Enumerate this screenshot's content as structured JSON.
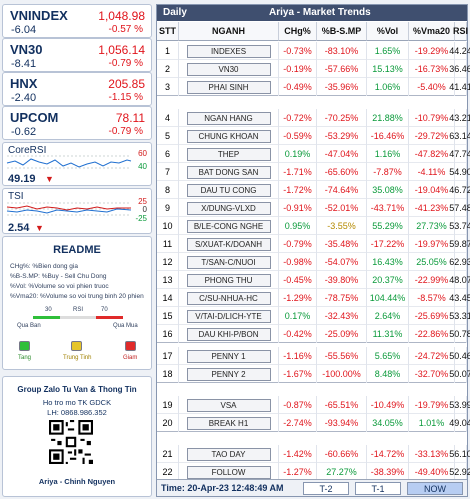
{
  "indices": [
    {
      "name": "VNINDEX",
      "value": "1,048.98",
      "change": "-6.04",
      "pct": "-0.57 %"
    },
    {
      "name": "VN30",
      "value": "1,056.14",
      "change": "-8.41",
      "pct": "-0.79 %"
    },
    {
      "name": "HNX",
      "value": "205.85",
      "change": "-2.40",
      "pct": "-1.15 %"
    },
    {
      "name": "UPCOM",
      "value": "78.11",
      "change": "-0.62",
      "pct": "-0.79 %"
    }
  ],
  "core_rsi": {
    "title": "CoreRSI",
    "value": "49.19",
    "ticks": [
      "60",
      "40"
    ],
    "line_color": "#1f6fd0"
  },
  "tsi": {
    "title": "TSI",
    "value": "2.54",
    "ticks": [
      "25",
      "0",
      "-25"
    ],
    "colors": [
      "#d21b1b",
      "#1f6fd0"
    ]
  },
  "readme": {
    "title": "README",
    "lines": [
      "CHg%: %Bien dong gia",
      "%B-S.MP: %Buy - Sell Chu Dong",
      "%Vol: %Volume so voi phien truoc",
      "%Vma20: %Volume so voi trung binh 20 phien"
    ],
    "scale": {
      "left": "30",
      "mid": "RSI",
      "right": "70",
      "under_left": "Qua Ban",
      "under_right": "Qua Mua"
    },
    "lamps": [
      {
        "label": "Tang",
        "color": "#2fbf3a"
      },
      {
        "label": "Trung Tinh",
        "color": "#e6c52a"
      },
      {
        "label": "Giam",
        "color": "#e02a2a"
      }
    ]
  },
  "group": {
    "title": "Group Zalo Tu Van & Thong Tin",
    "line1": "Ho tro mo TK GDCK",
    "line2": "LH: 0868.986.352",
    "signature": "Ariya - Chinh Nguyen"
  },
  "table": {
    "header_left": "Daily",
    "header_title": "Ariya  -  Market Trends",
    "columns": [
      "STT",
      "NGANH",
      "CHg%",
      "%B-S.MP",
      "%Vol",
      "%Vma20",
      "RSI"
    ],
    "rows": [
      {
        "stt": "1",
        "name": "INDEXES",
        "chg": "-0.73%",
        "bs": "-83.10%",
        "vol": "1.65%",
        "vma": "-19.29%",
        "rsi": "44.24",
        "c": [
          "neg",
          "neg",
          "pos",
          "neg",
          "neg"
        ]
      },
      {
        "stt": "2",
        "name": "VN30",
        "chg": "-0.19%",
        "bs": "-57.66%",
        "vol": "15.13%",
        "vma": "-16.73%",
        "rsi": "36.46",
        "c": [
          "neg",
          "neg",
          "pos",
          "neg",
          "neg"
        ]
      },
      {
        "stt": "3",
        "name": "PHAI SINH",
        "chg": "-0.49%",
        "bs": "-35.96%",
        "vol": "1.06%",
        "vma": "-5.40%",
        "rsi": "41.41",
        "c": [
          "neg",
          "neg",
          "pos",
          "neg",
          "neg"
        ]
      },
      {
        "stt": "4",
        "name": "NGAN HANG",
        "chg": "-0.72%",
        "bs": "-70.25%",
        "vol": "21.88%",
        "vma": "-10.79%",
        "rsi": "43.21",
        "c": [
          "neg",
          "neg",
          "pos",
          "neg",
          "neg"
        ]
      },
      {
        "stt": "5",
        "name": "CHUNG KHOAN",
        "chg": "-0.59%",
        "bs": "-53.29%",
        "vol": "-16.46%",
        "vma": "-29.72%",
        "rsi": "63.14",
        "c": [
          "neg",
          "neg",
          "neg",
          "neg",
          "pos"
        ]
      },
      {
        "stt": "6",
        "name": "THEP",
        "chg": "0.19%",
        "bs": "-47.04%",
        "vol": "1.16%",
        "vma": "-47.82%",
        "rsi": "47.74",
        "c": [
          "pos",
          "neg",
          "pos",
          "neg",
          "pos"
        ]
      },
      {
        "stt": "7",
        "name": "BAT DONG SAN",
        "chg": "-1.71%",
        "bs": "-65.60%",
        "vol": "-7.87%",
        "vma": "-4.11%",
        "rsi": "54.90",
        "c": [
          "neg",
          "neg",
          "neg",
          "neg",
          "neg"
        ]
      },
      {
        "stt": "8",
        "name": "DAU TU CONG",
        "chg": "-1.72%",
        "bs": "-74.64%",
        "vol": "35.08%",
        "vma": "-19.04%",
        "rsi": "46.72",
        "c": [
          "neg",
          "neg",
          "pos",
          "neg",
          "neg"
        ]
      },
      {
        "stt": "9",
        "name": "X/DUNG-VLXD",
        "chg": "-0.91%",
        "bs": "-52.01%",
        "vol": "-43.71%",
        "vma": "-41.23%",
        "rsi": "57.48",
        "c": [
          "neg",
          "neg",
          "neg",
          "neg",
          "neg"
        ]
      },
      {
        "stt": "10",
        "name": "B/LE-CONG NGHE",
        "chg": "0.95%",
        "bs": "-3.55%",
        "vol": "55.29%",
        "vma": "27.73%",
        "rsi": "53.74",
        "c": [
          "pos",
          "neu",
          "pos",
          "pos",
          "pos"
        ]
      },
      {
        "stt": "11",
        "name": "S/XUAT-K/DOANH",
        "chg": "-0.79%",
        "bs": "-35.48%",
        "vol": "-17.22%",
        "vma": "-19.97%",
        "rsi": "59.87",
        "c": [
          "neg",
          "neg",
          "neg",
          "neg",
          "neg"
        ]
      },
      {
        "stt": "12",
        "name": "T/SAN-C/NUOI",
        "chg": "-0.98%",
        "bs": "-54.07%",
        "vol": "16.43%",
        "vma": "25.05%",
        "rsi": "62.93",
        "c": [
          "neg",
          "neg",
          "pos",
          "pos",
          "neg"
        ]
      },
      {
        "stt": "13",
        "name": "PHONG THU",
        "chg": "-0.45%",
        "bs": "-39.80%",
        "vol": "20.37%",
        "vma": "-22.99%",
        "rsi": "48.07",
        "c": [
          "neg",
          "neg",
          "pos",
          "neg",
          "neg"
        ]
      },
      {
        "stt": "14",
        "name": "C/SU-NHUA-HC",
        "chg": "-1.29%",
        "bs": "-78.75%",
        "vol": "104.44%",
        "vma": "-8.57%",
        "rsi": "43.45",
        "c": [
          "neg",
          "neg",
          "pos",
          "neg",
          "neg"
        ]
      },
      {
        "stt": "15",
        "name": "V/TAI-D/LICH-YTE",
        "chg": "0.17%",
        "bs": "-32.43%",
        "vol": "2.64%",
        "vma": "-25.69%",
        "rsi": "53.31",
        "c": [
          "pos",
          "neg",
          "pos",
          "neg",
          "pos"
        ]
      },
      {
        "stt": "16",
        "name": "DAU KHI-P/BON",
        "chg": "-0.42%",
        "bs": "-25.09%",
        "vol": "11.31%",
        "vma": "-22.86%",
        "rsi": "50.78",
        "c": [
          "neg",
          "neg",
          "pos",
          "neg",
          "neg"
        ]
      },
      {
        "stt": "17",
        "name": "PENNY 1",
        "chg": "-1.16%",
        "bs": "-55.56%",
        "vol": "5.65%",
        "vma": "-24.72%",
        "rsi": "50.46",
        "c": [
          "neg",
          "neg",
          "pos",
          "neg",
          "neg"
        ]
      },
      {
        "stt": "18",
        "name": "PENNY 2",
        "chg": "-1.67%",
        "bs": "-100.00%",
        "vol": "8.48%",
        "vma": "-32.70%",
        "rsi": "50.07",
        "c": [
          "neg",
          "neg",
          "pos",
          "neg",
          "neg"
        ]
      },
      {
        "stt": "19",
        "name": "VSA",
        "chg": "-0.87%",
        "bs": "-65.51%",
        "vol": "-10.49%",
        "vma": "-19.79%",
        "rsi": "53.99",
        "c": [
          "neg",
          "neg",
          "neg",
          "neg",
          "neg"
        ]
      },
      {
        "stt": "20",
        "name": "BREAK H1",
        "chg": "-2.74%",
        "bs": "-93.94%",
        "vol": "34.05%",
        "vma": "1.01%",
        "rsi": "49.04",
        "c": [
          "neg",
          "neg",
          "pos",
          "pos",
          "neg"
        ]
      },
      {
        "stt": "21",
        "name": "TAO DAY",
        "chg": "-1.42%",
        "bs": "-60.66%",
        "vol": "-14.72%",
        "vma": "-33.13%",
        "rsi": "56.10",
        "c": [
          "neg",
          "neg",
          "neg",
          "neg",
          "neg"
        ]
      },
      {
        "stt": "22",
        "name": "FOLLOW",
        "chg": "-1.27%",
        "bs": "27.27%",
        "vol": "-38.39%",
        "vma": "-49.40%",
        "rsi": "52.92",
        "c": [
          "neg",
          "pos",
          "neg",
          "neg",
          "neg"
        ]
      }
    ],
    "footer": {
      "time": "Time: 20-Apr-23 12:48:49 AM",
      "buttons": [
        "T-2",
        "T-1",
        "NOW"
      ],
      "active": "NOW"
    }
  }
}
